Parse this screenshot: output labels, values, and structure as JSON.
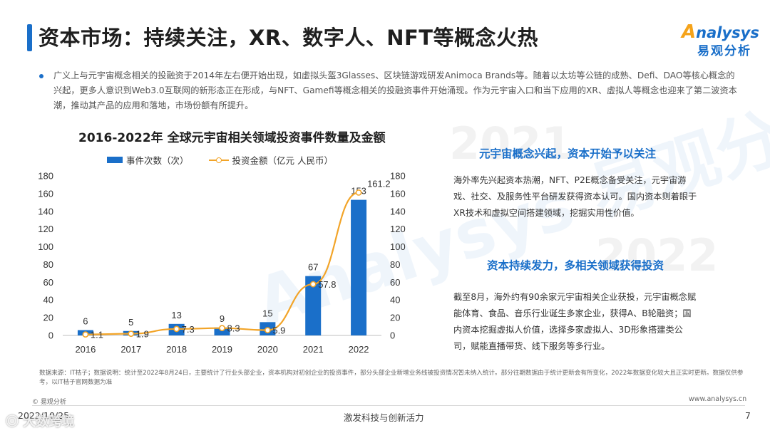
{
  "header": {
    "title": "资本市场：持续关注，XR、数字人、NFT等概念火热",
    "logo_en_a": "A",
    "logo_en_rest": "nalysys",
    "logo_cn": "易观分析"
  },
  "intro": {
    "text": "广义上与元宇宙概念相关的投融资于2014年左右便开始出现，如虚拟头盔3Glasses、区块链游戏研发Animoca Brands等。随着以太坊等公链的成熟、Defi、DAO等核心概念的兴起，更多人意识到Web3.0互联网的新形态正在形成，与NFT、Gamefi等概念相关的投融资事件开始涌现。作为元宇宙入口和当下应用的XR、虚拟人等概念也迎来了第二波资本潮，推动其产品的应用和落地，市场份额有所提升。"
  },
  "watermarks": {
    "brand": "Analysys 易观分析",
    "year_2021": "2021",
    "year_2022": "2022"
  },
  "chart_data": {
    "type": "bar",
    "title": "2016-2022年 全球元宇宙相关领域投资事件数量及金额",
    "categories": [
      "2016",
      "2017",
      "2018",
      "2019",
      "2020",
      "2021",
      "2022"
    ],
    "series": [
      {
        "name": "事件次数（次）",
        "type": "bar",
        "axis": "left",
        "values": [
          6,
          5,
          13,
          9,
          15,
          67,
          153
        ]
      },
      {
        "name": "投资金额（亿元 人民币）",
        "type": "line",
        "axis": "right",
        "values": [
          1.1,
          1.9,
          7.3,
          8.3,
          5.9,
          57.8,
          161.2
        ]
      }
    ],
    "ylim_left": [
      0,
      180
    ],
    "ylim_right": [
      0,
      180
    ],
    "y_ticks": [
      "0",
      "20",
      "40",
      "60",
      "80",
      "100",
      "120",
      "140",
      "160",
      "180"
    ],
    "grid": false,
    "legend": "top",
    "colors": {
      "bar": "#1a6fc9",
      "line": "#f2a428"
    }
  },
  "side": {
    "heading_2021": "元宇宙概念兴起，资本开始予以关注",
    "text_2021": "海外率先兴起资本热潮，NFT、P2E概念备受关注，元宇宙游戏、社交、及服务性平台研发获得资本认可。国内资本则着眼于XR技术和虚拟空间搭建领域，挖掘实用性价值。",
    "heading_2022": "资本持续发力，多相关领域获得投资",
    "text_2022": "截至8月，海外约有90余家元宇宙相关企业获投，元宇宙概念赋能体育、食品、音乐行业诞生多家企业，获得A、B轮融资；国内资本挖掘虚拟人价值，选择多家虚拟人、3D形象搭建类公司，赋能直播带货、线下服务等多行业。"
  },
  "footer": {
    "source": "数据来源：IT桔子；数据说明：统计至2022年8月24日，主要统计了行业头部企业，资本机构对初创企业的投资事件，部分头部企业新增业务线被投资情况暂未纳入统计。部分往期数据由于统计更新会有所变化，2022年数据变化较大且正实时更新。数据仅供参考，以IT桔子官网数据为准",
    "copyright": "© 易观分析",
    "site": "www.analysys.cn",
    "date": "2022/10/25",
    "slogan": "激发科技与创新活力",
    "page": "7",
    "wechat_mark": "⦿ 大数跨境"
  }
}
